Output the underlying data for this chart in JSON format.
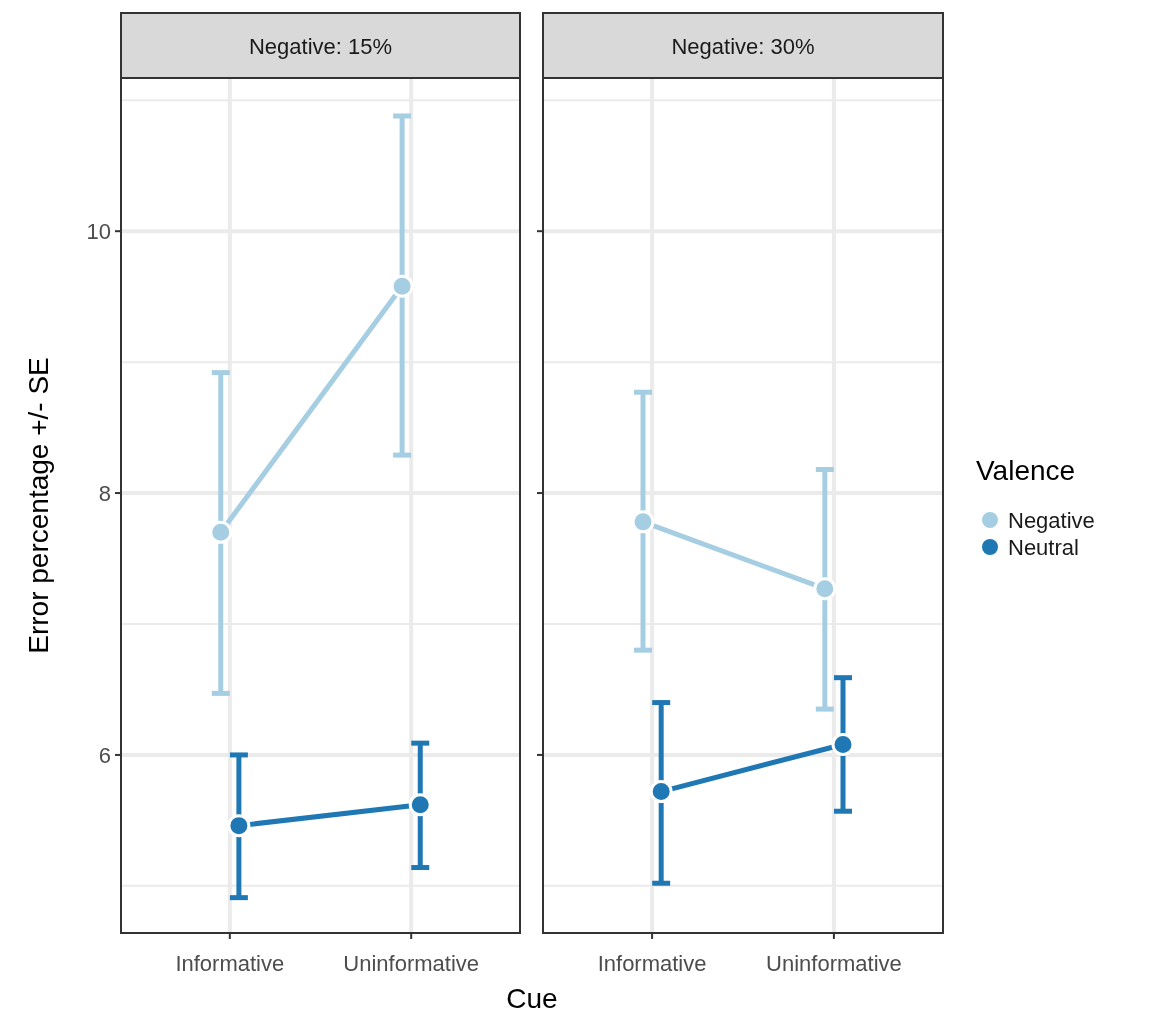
{
  "chart_data": [
    {
      "type": "line",
      "title": "Negative: 15%",
      "xlabel": "Cue",
      "ylabel": "Error percentage +/- SE",
      "categories": [
        "Informative",
        "Uninformative"
      ],
      "ylim": [
        4.64,
        11.17
      ],
      "yticks": [
        {
          "value": 5,
          "label": null
        },
        6,
        {
          "value": 7,
          "label": null
        },
        8,
        {
          "value": 9,
          "label": null
        },
        10,
        {
          "value": 11,
          "label": null
        }
      ],
      "grid": true,
      "marker": "circle",
      "line_style": "solid",
      "series": [
        {
          "color": "#a6cee3",
          "values": [
            7.7,
            9.58
          ],
          "errors": [
            [
              6.47,
              8.92
            ],
            [
              8.29,
              10.88
            ]
          ]
        },
        {
          "color": "#1f78b4",
          "values": [
            5.46,
            5.62
          ],
          "errors": [
            [
              4.91,
              6.0
            ],
            [
              5.14,
              6.09
            ]
          ]
        }
      ]
    },
    {
      "type": "line",
      "title": "Negative: 30%",
      "categories": [
        "Informative",
        "Uninformative"
      ],
      "ylim": [
        4.64,
        11.17
      ],
      "yticks": [
        {
          "value": 5,
          "label": null
        },
        6,
        {
          "value": 7,
          "label": null
        },
        8,
        {
          "value": 9,
          "label": null
        },
        10,
        {
          "value": 11,
          "label": null
        }
      ],
      "tick_labels": "x",
      "grid": true,
      "marker": "circle",
      "line_style": "solid",
      "legend": "right",
      "legend_title": "Valence",
      "series": [
        {
          "name": "Negative",
          "color": "#a6cee3",
          "values": [
            7.78,
            7.27
          ],
          "errors": [
            [
              6.8,
              8.77
            ],
            [
              6.35,
              8.18
            ]
          ]
        },
        {
          "name": "Neutral",
          "color": "#1f78b4",
          "values": [
            5.72,
            6.08
          ],
          "errors": [
            [
              5.02,
              6.4
            ],
            [
              5.57,
              6.59
            ]
          ]
        }
      ]
    }
  ]
}
